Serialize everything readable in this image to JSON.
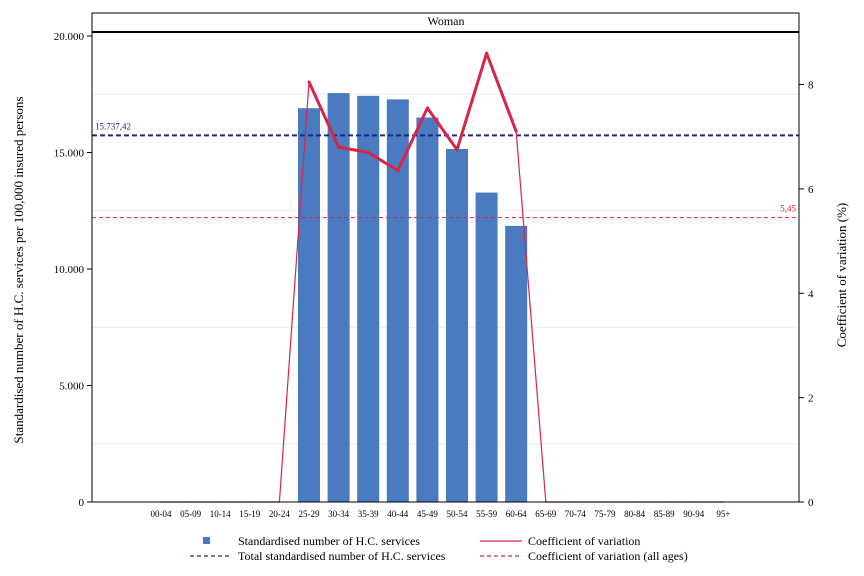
{
  "chart_data": {
    "type": "bar",
    "panel_title": "Woman",
    "categories": [
      "00-04",
      "05-09",
      "10-14",
      "15-19",
      "20-24",
      "25-29",
      "30-34",
      "35-39",
      "40-44",
      "45-49",
      "50-54",
      "55-59",
      "60-64",
      "65-69",
      "70-74",
      "75-79",
      "80-84",
      "85-89",
      "90-94",
      "95+"
    ],
    "series": [
      {
        "name": "Standardised number of H.C. services",
        "kind": "bar",
        "axis": "left",
        "color": "#4a7ac0",
        "values": [
          0,
          0,
          0,
          0,
          0,
          16900,
          17550,
          17430,
          17280,
          16500,
          15150,
          13280,
          11850,
          0,
          0,
          0,
          0,
          0,
          0,
          0
        ]
      },
      {
        "name": "Coefficient of variation",
        "kind": "line",
        "axis": "right",
        "color": "#d8254a",
        "values": [
          0,
          0,
          0,
          0,
          0,
          8.05,
          6.8,
          6.7,
          6.35,
          7.55,
          6.75,
          8.6,
          7.1,
          0,
          0,
          0,
          0,
          0,
          0,
          0
        ]
      }
    ],
    "reference_lines": [
      {
        "name": "Total standardised number of H.C. services",
        "axis": "left",
        "value": 15737.42,
        "label": "15.737,42",
        "color": "#1a2a80",
        "style": "dashed"
      },
      {
        "name": "Coefficient of variation (all ages)",
        "axis": "right",
        "value": 5.45,
        "label": "5,45",
        "color": "#d8254a",
        "style": "dashed"
      }
    ],
    "ylabel": "Standardised number of H.C. services per 100,000 insured persons",
    "y2label": "Coefficient of variation (%)",
    "ylim": [
      0,
      20000
    ],
    "yticks": [
      0,
      5000,
      10000,
      15000,
      20000
    ],
    "ytick_labels": [
      "0",
      "5.000",
      "10.000",
      "15.000",
      "20.000"
    ],
    "y2lim": [
      0,
      8.93
    ],
    "y2ticks": [
      0,
      2,
      4,
      6,
      8
    ],
    "y2tick_labels": [
      "0",
      "2",
      "4",
      "6",
      "8"
    ],
    "legend": [
      {
        "label": "Standardised number of H.C. services",
        "symbol": "square",
        "color": "#4a7ac0"
      },
      {
        "label": "Coefficient of variation",
        "symbol": "line",
        "color": "#d8254a"
      },
      {
        "label": "Total standardised number of H.C. services",
        "symbol": "dashed",
        "color": "#1a2a80"
      },
      {
        "label": "Coefficient of variation (all ages)",
        "symbol": "dashed",
        "color": "#d8254a"
      }
    ],
    "legend_position": "bottom"
  }
}
